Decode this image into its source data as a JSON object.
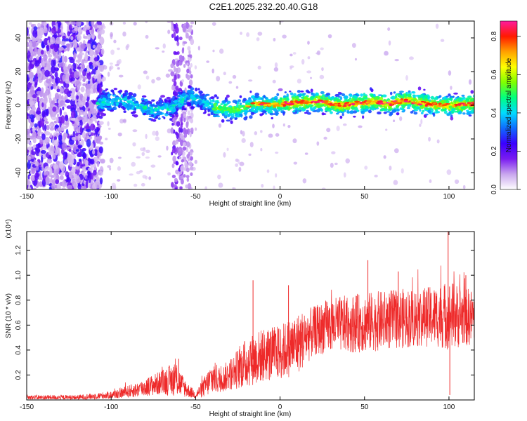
{
  "title": "C2E1.2025.232.20.40.G18",
  "chart_data": [
    {
      "type": "heatmap",
      "title": "C2E1.2025.232.20.40.G18",
      "xlabel": "Height of straight line (km)",
      "ylabel": "Frequency (Hz)",
      "xlim": [
        -150,
        115
      ],
      "ylim": [
        -50,
        50
      ],
      "x_ticks": [
        -150,
        -100,
        -50,
        0,
        50,
        100
      ],
      "x_tick_labels": [
        "-150",
        "-100",
        "-50",
        "0",
        "50",
        "100"
      ],
      "y_ticks": [
        -40,
        -20,
        0,
        20,
        40
      ],
      "y_tick_labels": [
        "-40",
        "-20",
        "0",
        "20",
        "40"
      ],
      "colorbar": {
        "label": "Normalized spectral amplitude",
        "range": [
          0,
          0.88
        ],
        "ticks": [
          0.0,
          0.2,
          0.4,
          0.6,
          0.8
        ],
        "tick_labels": [
          "0.0",
          "0.2",
          "0.4",
          "0.6",
          "0.8"
        ],
        "colors": [
          "#ffffff",
          "#c9a6ee",
          "#7a1cf0",
          "#3a00ff",
          "#0f6bff",
          "#00dcff",
          "#00ff80",
          "#80ff00",
          "#ffff00",
          "#ffa000",
          "#ff1a00",
          "#ff1a9e"
        ]
      },
      "ridge": {
        "description_values": "frequency centre (Hz) along height (km)",
        "points": [
          {
            "x": -105,
            "y": 2
          },
          {
            "x": -95,
            "y": 3
          },
          {
            "x": -85,
            "y": 0
          },
          {
            "x": -75,
            "y": -3
          },
          {
            "x": -65,
            "y": -2
          },
          {
            "x": -55,
            "y": 5
          },
          {
            "x": -45,
            "y": 2
          },
          {
            "x": -35,
            "y": -2
          },
          {
            "x": -25,
            "y": -3
          },
          {
            "x": -15,
            "y": 1
          },
          {
            "x": -5,
            "y": 0
          },
          {
            "x": 5,
            "y": 1
          },
          {
            "x": 15,
            "y": 2
          },
          {
            "x": 25,
            "y": 2
          },
          {
            "x": 35,
            "y": 0
          },
          {
            "x": 45,
            "y": 1
          },
          {
            "x": 55,
            "y": 2
          },
          {
            "x": 65,
            "y": 1
          },
          {
            "x": 75,
            "y": 3
          },
          {
            "x": 85,
            "y": 1
          },
          {
            "x": 95,
            "y": 0
          },
          {
            "x": 105,
            "y": 0
          },
          {
            "x": 115,
            "y": 1
          }
        ]
      }
    },
    {
      "type": "line",
      "xlabel": "Height of straight line (km)",
      "ylabel": "SNR (10 * v/v)",
      "y_scale_label": "(x10⁴)",
      "xlim": [
        -150,
        115
      ],
      "ylim": [
        0,
        1.35
      ],
      "x_ticks": [
        -150,
        -100,
        -50,
        0,
        50,
        100
      ],
      "x_tick_labels": [
        "-150",
        "-100",
        "-50",
        "0",
        "50",
        "100"
      ],
      "y_ticks": [
        0.2,
        0.4,
        0.6,
        0.8,
        1.0,
        1.2
      ],
      "y_tick_labels": [
        "0.2",
        "0.4",
        "0.6",
        "0.8",
        "1.0",
        "1.2"
      ],
      "series": [
        {
          "name": "SNR",
          "color": "#ee2a2a",
          "envelope": [
            {
              "x": -150,
              "mean": 0.02,
              "spread": 0.02
            },
            {
              "x": -120,
              "mean": 0.02,
              "spread": 0.02
            },
            {
              "x": -100,
              "mean": 0.04,
              "spread": 0.03
            },
            {
              "x": -85,
              "mean": 0.08,
              "spread": 0.06
            },
            {
              "x": -70,
              "mean": 0.14,
              "spread": 0.1
            },
            {
              "x": -62,
              "mean": 0.17,
              "spread": 0.14
            },
            {
              "x": -55,
              "mean": 0.08,
              "spread": 0.06
            },
            {
              "x": -50,
              "mean": 0.04,
              "spread": 0.03
            },
            {
              "x": -45,
              "mean": 0.1,
              "spread": 0.08
            },
            {
              "x": -40,
              "mean": 0.18,
              "spread": 0.14
            },
            {
              "x": -35,
              "mean": 0.16,
              "spread": 0.1
            },
            {
              "x": -28,
              "mean": 0.22,
              "spread": 0.14
            },
            {
              "x": -20,
              "mean": 0.3,
              "spread": 0.2
            },
            {
              "x": -10,
              "mean": 0.36,
              "spread": 0.22
            },
            {
              "x": 0,
              "mean": 0.38,
              "spread": 0.22
            },
            {
              "x": 10,
              "mean": 0.45,
              "spread": 0.25
            },
            {
              "x": 20,
              "mean": 0.55,
              "spread": 0.2
            },
            {
              "x": 30,
              "mean": 0.6,
              "spread": 0.22
            },
            {
              "x": 50,
              "mean": 0.62,
              "spread": 0.24
            },
            {
              "x": 70,
              "mean": 0.65,
              "spread": 0.24
            },
            {
              "x": 90,
              "mean": 0.67,
              "spread": 0.24
            },
            {
              "x": 100,
              "mean": 0.68,
              "spread": 0.28
            },
            {
              "x": 115,
              "mean": 0.66,
              "spread": 0.22
            }
          ],
          "spikes": [
            {
              "x": -60,
              "y": 0.33
            },
            {
              "x": -16,
              "y": 0.96
            },
            {
              "x": 5,
              "y": 0.92
            },
            {
              "x": 52,
              "y": 1.12
            },
            {
              "x": 70,
              "y": 1.03
            },
            {
              "x": 99.5,
              "y": 1.35
            },
            {
              "x": 100.5,
              "y": 0.04
            },
            {
              "x": 110,
              "y": 1.0
            }
          ]
        }
      ]
    }
  ]
}
